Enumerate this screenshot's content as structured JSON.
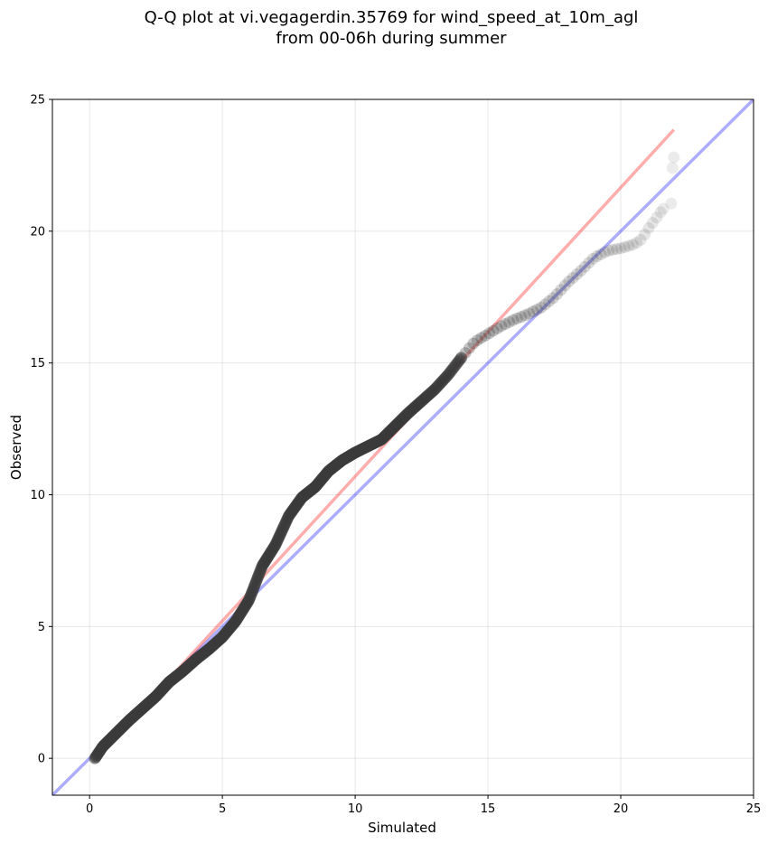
{
  "chart_data": {
    "type": "scatter",
    "title": [
      "Q-Q plot at vi.vegagerdin.35769 for wind_speed_at_10m_agl",
      "from 00-06h during summer"
    ],
    "xlabel": "Simulated",
    "ylabel": "Observed",
    "xlim": [
      -1.4,
      25
    ],
    "ylim": [
      -1.4,
      25
    ],
    "xticks": [
      0,
      5,
      10,
      15,
      20,
      25
    ],
    "yticks": [
      0,
      5,
      10,
      15,
      20,
      25
    ],
    "grid": true,
    "reference_lines": [
      {
        "kind": "identity",
        "color": "#0000ff",
        "x": [
          -1.4,
          25
        ],
        "y": [
          -1.4,
          25
        ]
      },
      {
        "kind": "fit",
        "color": "#ff0000",
        "x": [
          0.2,
          22
        ],
        "y": [
          -0.05,
          23.85
        ]
      }
    ],
    "quantile_curve": {
      "x": [
        0.2,
        0.5,
        1.0,
        1.5,
        2.0,
        2.5,
        3.0,
        3.5,
        4.0,
        4.5,
        5.0,
        5.5,
        6.0,
        6.5,
        7.0,
        7.5,
        8.0,
        8.5,
        9.0,
        9.5,
        10.0,
        10.5,
        11.0,
        11.5,
        12.0,
        12.5,
        13.0,
        13.5,
        14.0,
        14.5,
        15.0,
        15.5,
        16.0,
        16.5,
        17.0,
        17.5,
        18.0,
        18.5,
        19.0,
        19.5,
        20.0,
        20.5,
        20.8,
        21.0,
        21.3,
        21.6,
        21.9,
        22.0
      ],
      "y": [
        0.0,
        0.45,
        0.95,
        1.45,
        1.9,
        2.35,
        2.9,
        3.3,
        3.75,
        4.15,
        4.6,
        5.2,
        6.0,
        7.3,
        8.1,
        9.2,
        9.9,
        10.3,
        10.9,
        11.3,
        11.6,
        11.85,
        12.1,
        12.6,
        13.1,
        13.55,
        14.0,
        14.55,
        15.2,
        15.8,
        16.1,
        16.4,
        16.65,
        16.85,
        17.1,
        17.5,
        18.05,
        18.5,
        19.0,
        19.25,
        19.35,
        19.5,
        19.7,
        20.05,
        20.45,
        20.85,
        21.05,
        22.8
      ]
    }
  }
}
